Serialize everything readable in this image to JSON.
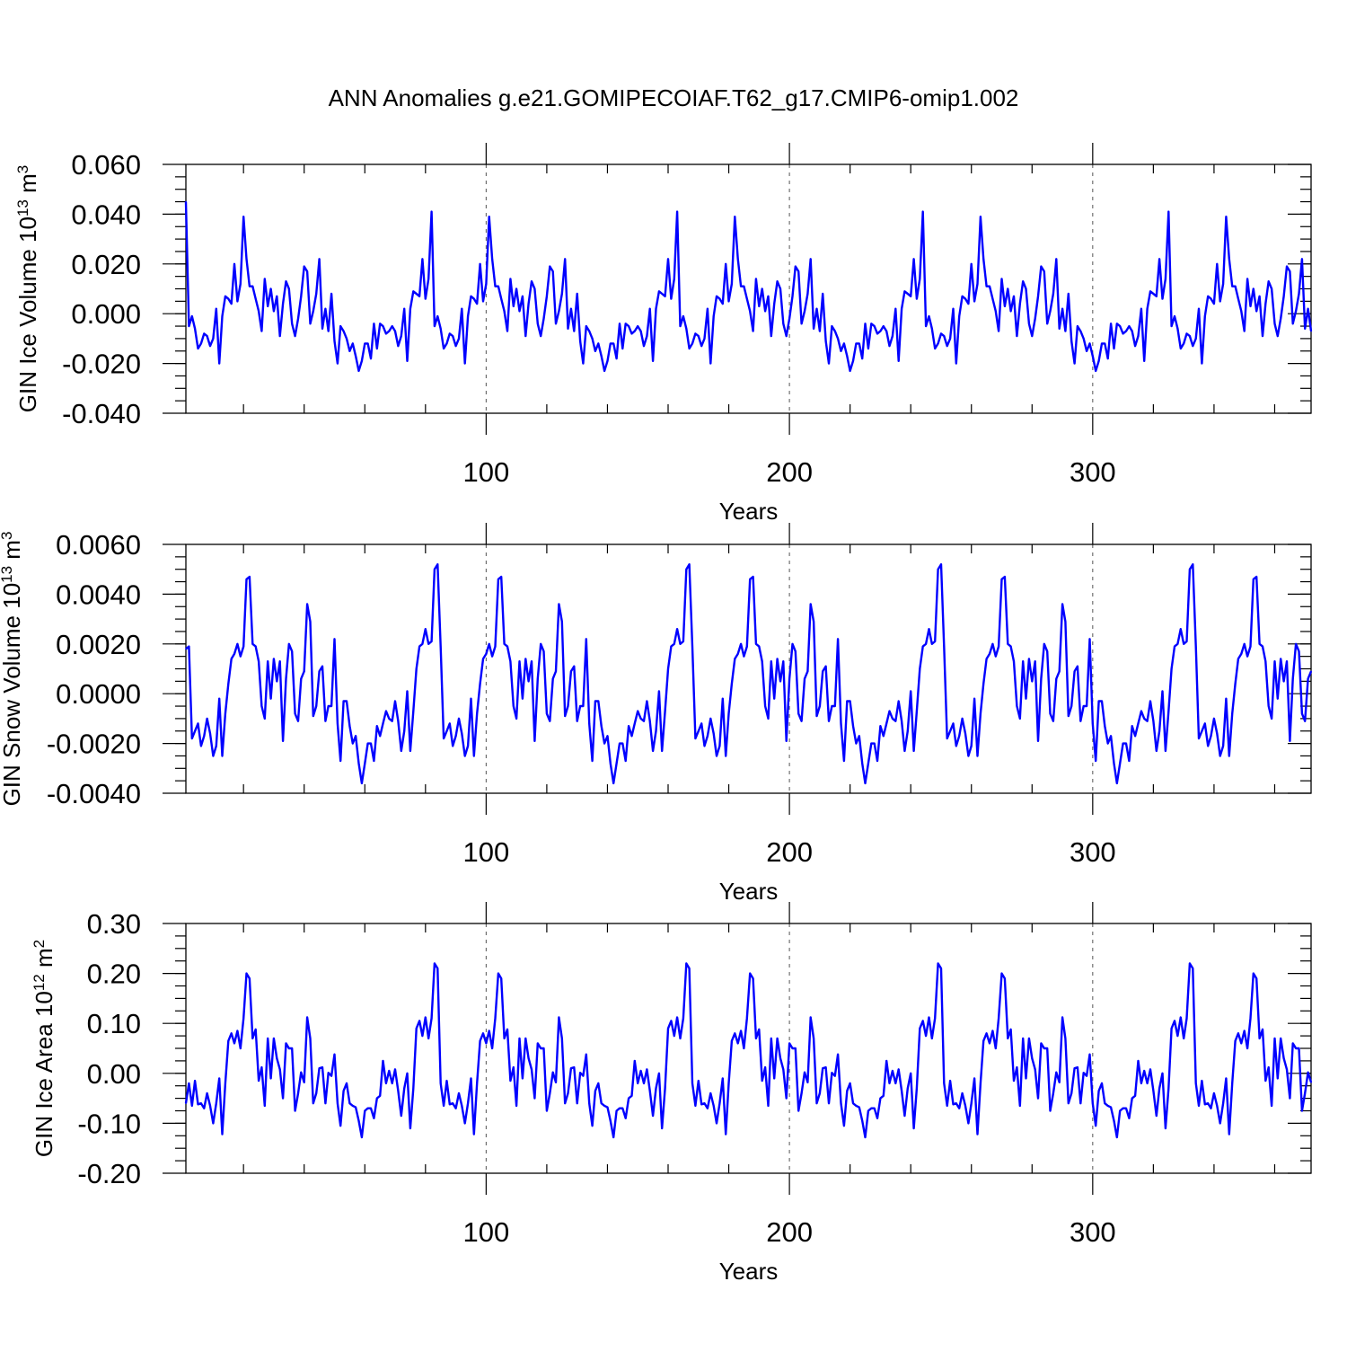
{
  "title": "ANN Anomalies g.e21.GOMIPECOIAF.T62_g17.CMIP6-omip1.002",
  "colors": {
    "series": "#0000ff",
    "axis": "#000000",
    "reference_line": "#555555"
  },
  "chart_data": [
    {
      "type": "line",
      "name": "ice-volume",
      "ylabel": {
        "prefix": "GIN Ice Volume 10",
        "exp": "13",
        "unit": " m",
        "unit_exp": "3"
      },
      "xlabel": "Years",
      "xlim": [
        1,
        372
      ],
      "ylim": [
        -0.04,
        0.06
      ],
      "x_ticks": [
        100,
        200,
        300
      ],
      "x_tick_labels": [
        "100",
        "200",
        "300"
      ],
      "x_minor_step": 20,
      "y_ticks": [
        -0.04,
        -0.02,
        0.0,
        0.02,
        0.04,
        0.06
      ],
      "y_tick_labels": [
        "-0.040",
        "-0.020",
        "0.000",
        "0.020",
        "0.040",
        "0.060"
      ],
      "y_minor_step": 0.005,
      "reference_lines_x": [
        100,
        200,
        300
      ],
      "grid": false,
      "cycle_start_value": 0.045,
      "cycle": [
        -0.005,
        -0.001,
        -0.006,
        -0.014,
        -0.012,
        -0.008,
        -0.009,
        -0.013,
        -0.01,
        0.002,
        -0.02,
        -0.001,
        0.007,
        0.006,
        0.004,
        0.02,
        0.005,
        0.012,
        0.039,
        0.022,
        0.011,
        0.011,
        0.006,
        0.001,
        -0.007,
        0.014,
        0.003,
        0.01,
        0.001,
        0.007,
        -0.009,
        0.004,
        0.013,
        0.01,
        -0.004,
        -0.009,
        -0.002,
        0.007,
        0.019,
        0.017,
        -0.004,
        0.001,
        0.008,
        0.022,
        -0.006,
        0.002,
        -0.007,
        0.008,
        -0.011,
        -0.02,
        -0.005,
        -0.007,
        -0.01,
        -0.015,
        -0.012,
        -0.017,
        -0.023,
        -0.019,
        -0.012,
        -0.012,
        -0.018,
        -0.004,
        -0.014,
        -0.004,
        -0.005,
        -0.008,
        -0.007,
        -0.005,
        -0.007,
        -0.013,
        -0.009,
        0.002,
        -0.019,
        0.002,
        0.009,
        0.008,
        0.007,
        0.022,
        0.006,
        0.014,
        0.041
      ],
      "values": []
    },
    {
      "type": "line",
      "name": "snow-volume",
      "ylabel": {
        "prefix": "GIN Snow Volume 10",
        "exp": "13",
        "unit": " m",
        "unit_exp": "3"
      },
      "xlabel": "Years",
      "xlim": [
        1,
        372
      ],
      "ylim": [
        -0.004,
        0.006
      ],
      "x_ticks": [
        100,
        200,
        300
      ],
      "x_tick_labels": [
        "100",
        "200",
        "300"
      ],
      "x_minor_step": 20,
      "y_ticks": [
        -0.004,
        -0.002,
        0.0,
        0.002,
        0.004,
        0.006
      ],
      "y_tick_labels": [
        "-0.0040",
        "-0.0020",
        "0.0000",
        "0.0020",
        "0.0040",
        "0.0060"
      ],
      "y_minor_step": 0.0005,
      "reference_lines_x": [
        100,
        200,
        300
      ],
      "grid": false,
      "cycle_start_value": 0.0018,
      "cycle": [
        0.0019,
        -0.0018,
        -0.0015,
        -0.0012,
        -0.0021,
        -0.0017,
        -0.001,
        -0.0016,
        -0.0025,
        -0.0021,
        -0.0002,
        -0.0025,
        -0.0008,
        0.0004,
        0.0014,
        0.0016,
        0.002,
        0.0015,
        0.0019,
        0.0046,
        0.0047,
        0.002,
        0.0019,
        0.0013,
        -0.0005,
        -0.001,
        0.0013,
        -0.0002,
        0.0014,
        0.0005,
        0.0013,
        -0.0019,
        0.0006,
        0.002,
        0.0017,
        -0.0008,
        -0.0011,
        0.0006,
        0.0009,
        0.0036,
        0.0029,
        -0.0009,
        -0.0005,
        0.0009,
        0.0011,
        -0.0011,
        -0.0005,
        -0.0005,
        0.0022,
        -0.0012,
        -0.0027,
        -0.0003,
        -0.0003,
        -0.0013,
        -0.002,
        -0.0017,
        -0.0028,
        -0.0036,
        -0.0028,
        -0.002,
        -0.002,
        -0.0027,
        -0.0013,
        -0.0017,
        -0.0012,
        -0.0007,
        -0.001,
        -0.0011,
        -0.0003,
        -0.0011,
        -0.0023,
        -0.0015,
        0.0001,
        -0.0023,
        -0.0007,
        0.001,
        0.0019,
        0.002,
        0.0026,
        0.002,
        0.0021,
        0.005,
        0.0052
      ],
      "values": []
    },
    {
      "type": "line",
      "name": "ice-area",
      "ylabel": {
        "prefix": "GIN Ice Area 10",
        "exp": "12",
        "unit": " m",
        "unit_exp": "2"
      },
      "xlabel": "Years",
      "xlim": [
        1,
        372
      ],
      "ylim": [
        -0.2,
        0.3
      ],
      "x_ticks": [
        100,
        200,
        300
      ],
      "x_tick_labels": [
        "100",
        "200",
        "300"
      ],
      "x_minor_step": 20,
      "y_ticks": [
        -0.2,
        -0.1,
        0.0,
        0.1,
        0.2,
        0.3
      ],
      "y_tick_labels": [
        "-0.20",
        "-0.10",
        "0.00",
        "0.10",
        "0.20",
        "0.30"
      ],
      "y_minor_step": 0.025,
      "reference_lines_x": [
        100,
        200,
        300
      ],
      "grid": false,
      "cycle_start_value": -0.06,
      "cycle": [
        -0.02,
        -0.065,
        -0.015,
        -0.062,
        -0.06,
        -0.07,
        -0.04,
        -0.065,
        -0.1,
        -0.06,
        -0.01,
        -0.122,
        -0.02,
        0.065,
        0.08,
        0.06,
        0.085,
        0.05,
        0.11,
        0.2,
        0.19,
        0.07,
        0.088,
        -0.015,
        0.012,
        -0.065,
        0.07,
        -0.01,
        0.07,
        0.03,
        0.008,
        -0.05,
        0.06,
        0.05,
        0.05,
        -0.075,
        -0.04,
        0.002,
        -0.018,
        0.112,
        0.07,
        -0.06,
        -0.04,
        0.01,
        0.012,
        -0.06,
        0.001,
        -0.005,
        0.038,
        -0.06,
        -0.105,
        -0.035,
        -0.02,
        -0.06,
        -0.065,
        -0.068,
        -0.095,
        -0.128,
        -0.075,
        -0.07,
        -0.07,
        -0.09,
        -0.05,
        -0.045,
        0.025,
        -0.02,
        0.005,
        -0.02,
        0.008,
        -0.035,
        -0.085,
        -0.03,
        0.0,
        -0.11,
        -0.03,
        0.09,
        0.105,
        0.075,
        0.112,
        0.07,
        0.11,
        0.22,
        0.21
      ],
      "values": []
    }
  ]
}
